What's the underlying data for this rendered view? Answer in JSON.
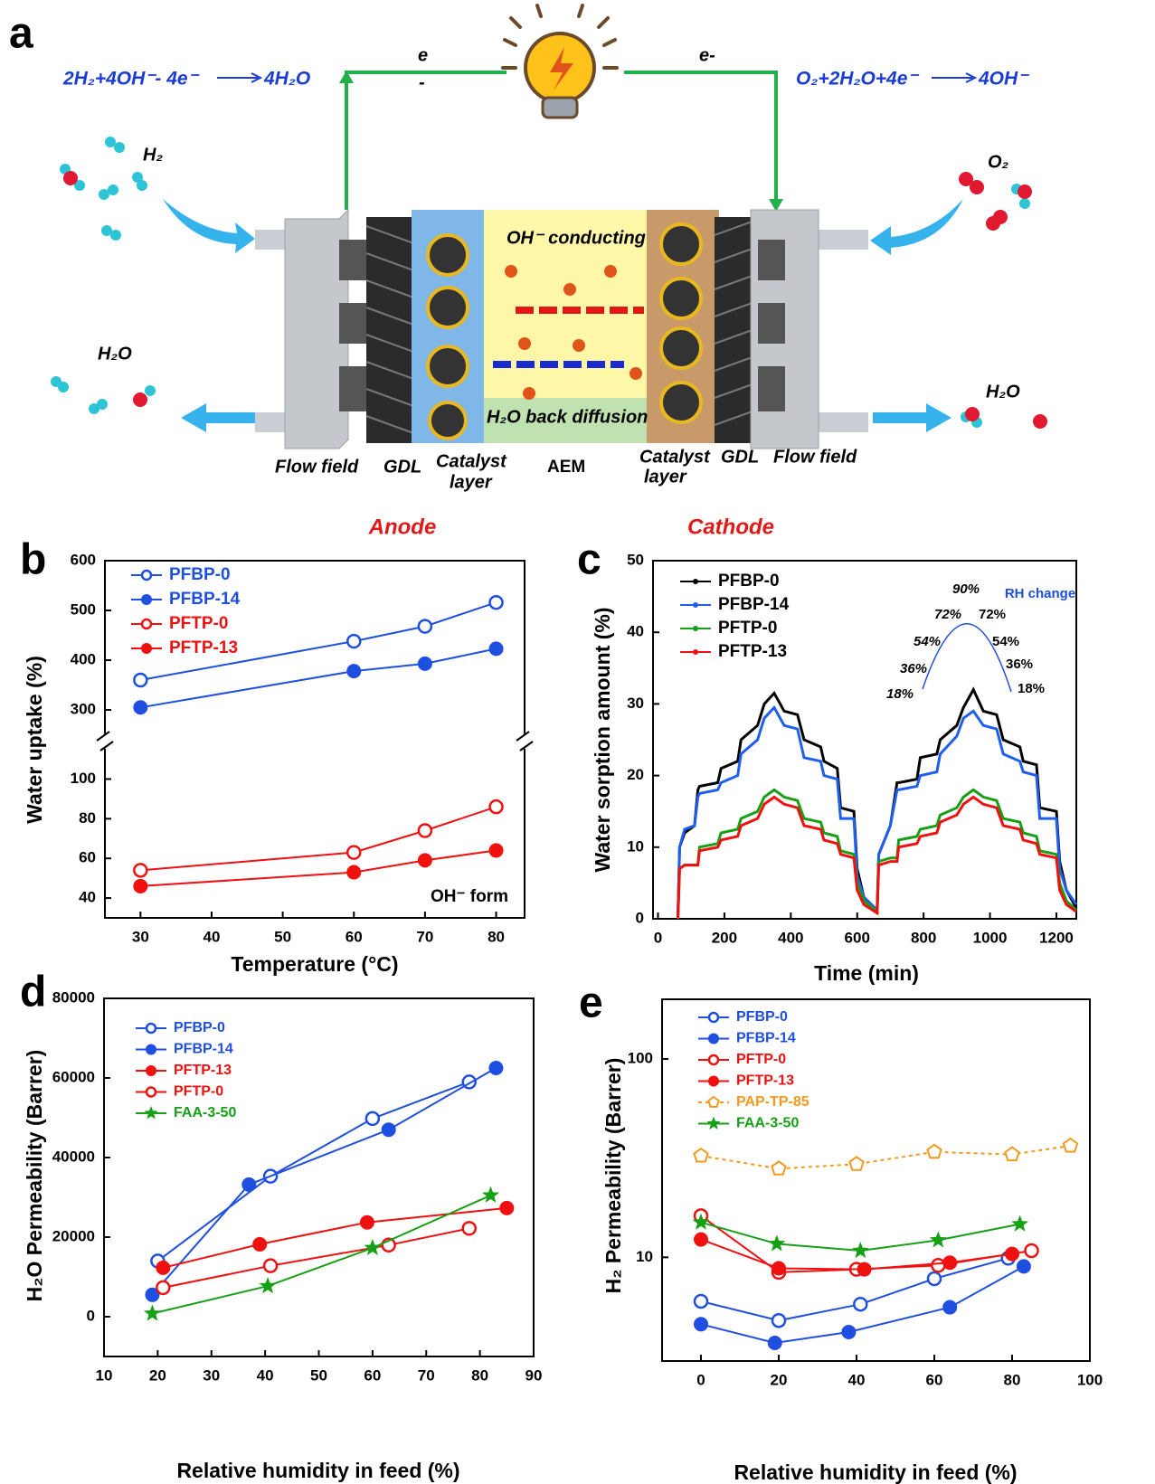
{
  "diagram": {
    "panel_label": "a",
    "anode_equation": "2H₂+4OH⁻- 4e⁻",
    "anode_product": "4H₂O",
    "electron_left": "e",
    "electron_left_sign": "-",
    "electron_right": "e-",
    "cathode_equation": "O₂+2H₂O+4e⁻",
    "cathode_product": "4OH⁻",
    "h2_in": "H₂",
    "o2_in": "O₂",
    "h2o_out_left": "H₂O",
    "h2o_out_right": "H₂O",
    "aem_top": "OH⁻ conducting",
    "aem_bottom": "H₂O back diffusion",
    "flow_field_left": "Flow field",
    "gdl_left": "GDL",
    "catalyst_left": {
      "line1": "Catalyst",
      "line2": "layer"
    },
    "aem": "AEM",
    "catalyst_right": {
      "line1": "Catalyst",
      "line2": "layer"
    },
    "gdl_right": "GDL",
    "flow_field_right": "Flow field",
    "anode": "Anode",
    "cathode": "Cathode"
  },
  "chart_data": [
    {
      "type": "line",
      "panel_label": "b",
      "xlabel": "Temperature (°C)",
      "ylabel": "Water uptake (%)",
      "annotation": "OH⁻ form",
      "legend": "upper left",
      "legend_colored": true,
      "x": [
        30,
        60,
        70,
        80
      ],
      "xlim": [
        25,
        84
      ],
      "xticks": [
        30,
        40,
        50,
        60,
        70,
        80
      ],
      "segments": [
        {
          "ylim": [
            30,
            118
          ],
          "yticks": [
            40,
            60,
            80,
            100
          ]
        },
        {
          "ylim": [
            240,
            600
          ],
          "yticks": [
            300,
            400,
            500,
            600
          ]
        }
      ],
      "series": [
        {
          "name": "PFBP-0",
          "color": "#1f4fe0",
          "marker": "circle-open",
          "values": [
            360,
            438,
            468,
            516
          ]
        },
        {
          "name": "PFBP-14",
          "color": "#1f4fe0",
          "marker": "circle",
          "values": [
            305,
            378,
            393,
            423
          ]
        },
        {
          "name": "PFTP-0",
          "color": "#f01010",
          "marker": "circle-open",
          "values": [
            54,
            63,
            74,
            86
          ]
        },
        {
          "name": "PFTP-13",
          "color": "#f01010",
          "marker": "circle",
          "values": [
            46,
            53,
            59,
            64
          ]
        }
      ]
    },
    {
      "type": "line",
      "panel_label": "c",
      "xlabel": "Time (min)",
      "ylabel": "Water sorption amount (%)",
      "legend": "upper left",
      "legend_colored": false,
      "x": [
        60,
        65,
        80,
        110,
        120,
        125,
        180,
        190,
        240,
        250,
        300,
        320,
        350,
        380,
        420,
        440,
        490,
        500,
        540,
        550,
        590,
        600,
        620,
        660,
        665,
        700,
        720,
        725,
        780,
        790,
        840,
        850,
        900,
        920,
        950,
        980,
        1020,
        1040,
        1090,
        1100,
        1140,
        1150,
        1200,
        1210,
        1230,
        1260
      ],
      "xlim": [
        -15,
        1260
      ],
      "xticks": [
        0,
        200,
        400,
        600,
        800,
        1000,
        1200
      ],
      "ylim": [
        0,
        50
      ],
      "yticks": [
        0,
        10,
        20,
        30,
        40,
        50
      ],
      "inset": {
        "title": "RH change",
        "labels": [
          "90%",
          "72%",
          "72%",
          "54%",
          "54%",
          "36%",
          "36%",
          "18%",
          "18%"
        ]
      },
      "series": [
        {
          "name": "PFBP-0",
          "color": "#000000",
          "values": [
            0,
            10,
            12,
            13,
            18,
            18.5,
            19,
            21,
            22,
            25,
            27,
            30,
            31.5,
            29,
            28.5,
            25,
            24,
            22,
            21,
            15.5,
            15,
            7,
            3,
            1.2,
            9,
            13,
            19,
            19,
            19.5,
            22.5,
            23,
            25,
            27,
            29.5,
            32,
            29,
            28.5,
            25,
            24,
            22,
            21.5,
            15.5,
            15,
            8,
            4,
            1.5
          ]
        },
        {
          "name": "PFBP-14",
          "color": "#1f5ff0",
          "values": [
            0,
            10,
            12.5,
            13,
            17,
            17.5,
            18,
            19,
            20,
            23,
            25,
            28,
            29.5,
            27,
            26.5,
            22.5,
            22,
            20,
            19.5,
            14,
            14,
            6,
            3,
            1.2,
            9,
            13,
            18,
            18,
            18.5,
            20,
            20.5,
            23,
            25.5,
            28,
            29,
            27,
            26.5,
            23,
            22,
            20.5,
            20,
            14,
            14,
            7,
            4,
            2
          ]
        },
        {
          "name": "PFTP-0",
          "color": "#16a016",
          "values": [
            0,
            7,
            7.5,
            7.5,
            7.5,
            10,
            10.5,
            12,
            12.5,
            14,
            15,
            17,
            18,
            17,
            16.5,
            14,
            13.5,
            12,
            11.5,
            9.5,
            9,
            5,
            2.5,
            1,
            8,
            8.5,
            8.5,
            11,
            11.5,
            12.5,
            13,
            14.5,
            15.5,
            17,
            18,
            17,
            16.5,
            14,
            13.5,
            12,
            11.5,
            9.5,
            9,
            5,
            2.5,
            1.2
          ]
        },
        {
          "name": "PFTP-13",
          "color": "#f01010",
          "values": [
            0,
            7,
            7.5,
            7.5,
            7.5,
            9.5,
            10,
            11,
            11.5,
            13,
            14,
            16,
            17,
            16,
            15.5,
            13,
            12.5,
            11,
            10.5,
            9,
            8.5,
            4,
            2,
            0.8,
            7.5,
            8,
            8,
            10,
            10.5,
            11.5,
            12,
            13.5,
            14.5,
            16,
            17,
            16,
            15.5,
            13,
            12.5,
            11,
            10.5,
            9,
            8.5,
            4,
            2,
            1
          ]
        }
      ]
    },
    {
      "type": "line",
      "panel_label": "d",
      "xlabel": "Relative humidity in feed (%)",
      "ylabel": "H₂O Permeability (Barrer)",
      "legend": "upper left",
      "legend_colored": true,
      "xlim": [
        10,
        90
      ],
      "xticks": [
        10,
        20,
        30,
        40,
        50,
        60,
        70,
        80,
        90
      ],
      "ylim": [
        -10000,
        80000
      ],
      "yticks": [
        0,
        20000,
        40000,
        60000,
        80000
      ],
      "series": [
        {
          "name": "PFBP-0",
          "color": "#1f4fe0",
          "marker": "circle-open",
          "x": [
            20,
            41,
            60,
            78
          ],
          "values": [
            14000,
            35300,
            49800,
            59000
          ]
        },
        {
          "name": "PFBP-14",
          "color": "#1f4fe0",
          "marker": "circle",
          "x": [
            19,
            37,
            63,
            83
          ],
          "values": [
            5500,
            33200,
            47000,
            62500
          ]
        },
        {
          "name": "PFTP-13",
          "color": "#f01010",
          "marker": "circle",
          "x": [
            21,
            39,
            59,
            85
          ],
          "values": [
            12300,
            18200,
            23700,
            27300
          ]
        },
        {
          "name": "PFTP-0",
          "color": "#f01010",
          "marker": "circle-open",
          "x": [
            21,
            41,
            63,
            78
          ],
          "values": [
            7300,
            12800,
            18000,
            22200
          ]
        },
        {
          "name": "FAA-3-50",
          "color": "#16a016",
          "marker": "star",
          "x": [
            19,
            40.5,
            60,
            82
          ],
          "values": [
            800,
            7700,
            17300,
            30500
          ]
        }
      ]
    },
    {
      "type": "line",
      "panel_label": "e",
      "xlabel": "Relative humidity in feed (%)",
      "ylabel": "H₂ Permeability (Barrer)",
      "legend": "upper left",
      "legend_colored": true,
      "log_y": true,
      "xlim": [
        -10,
        100
      ],
      "xticks": [
        0,
        20,
        40,
        60,
        80,
        100
      ],
      "ylim": [
        3,
        200
      ],
      "yticks": [
        10,
        100
      ],
      "series": [
        {
          "name": "PFBP-0",
          "color": "#1f4fe0",
          "marker": "circle-open",
          "x": [
            0,
            20,
            41,
            60,
            79
          ],
          "values": [
            6,
            4.8,
            5.8,
            7.8,
            9.9
          ]
        },
        {
          "name": "PFBP-14",
          "color": "#1f4fe0",
          "marker": "circle",
          "x": [
            0,
            19,
            38,
            64,
            83
          ],
          "values": [
            4.6,
            3.7,
            4.2,
            5.6,
            9
          ]
        },
        {
          "name": "PFTP-0",
          "color": "#f01010",
          "marker": "circle-open",
          "x": [
            0,
            20,
            40,
            61,
            85
          ],
          "values": [
            16.2,
            8.4,
            8.7,
            9.1,
            10.8
          ]
        },
        {
          "name": "PFTP-13",
          "color": "#f01010",
          "marker": "circle",
          "x": [
            0,
            20,
            42,
            64,
            80
          ],
          "values": [
            12.3,
            8.8,
            8.7,
            9.4,
            10.4
          ]
        },
        {
          "name": "PAP-TP-85",
          "color": "#f39a1c",
          "marker": "pentagon-open",
          "dash": true,
          "x": [
            0,
            20,
            40,
            60,
            80,
            95
          ],
          "values": [
            32.5,
            28,
            29.5,
            34,
            33,
            36.5
          ]
        },
        {
          "name": "FAA-3-50",
          "color": "#16a016",
          "marker": "star",
          "x": [
            0,
            19.5,
            41,
            61,
            82
          ],
          "values": [
            15,
            11.7,
            10.8,
            12.2,
            14.7
          ]
        }
      ]
    }
  ]
}
